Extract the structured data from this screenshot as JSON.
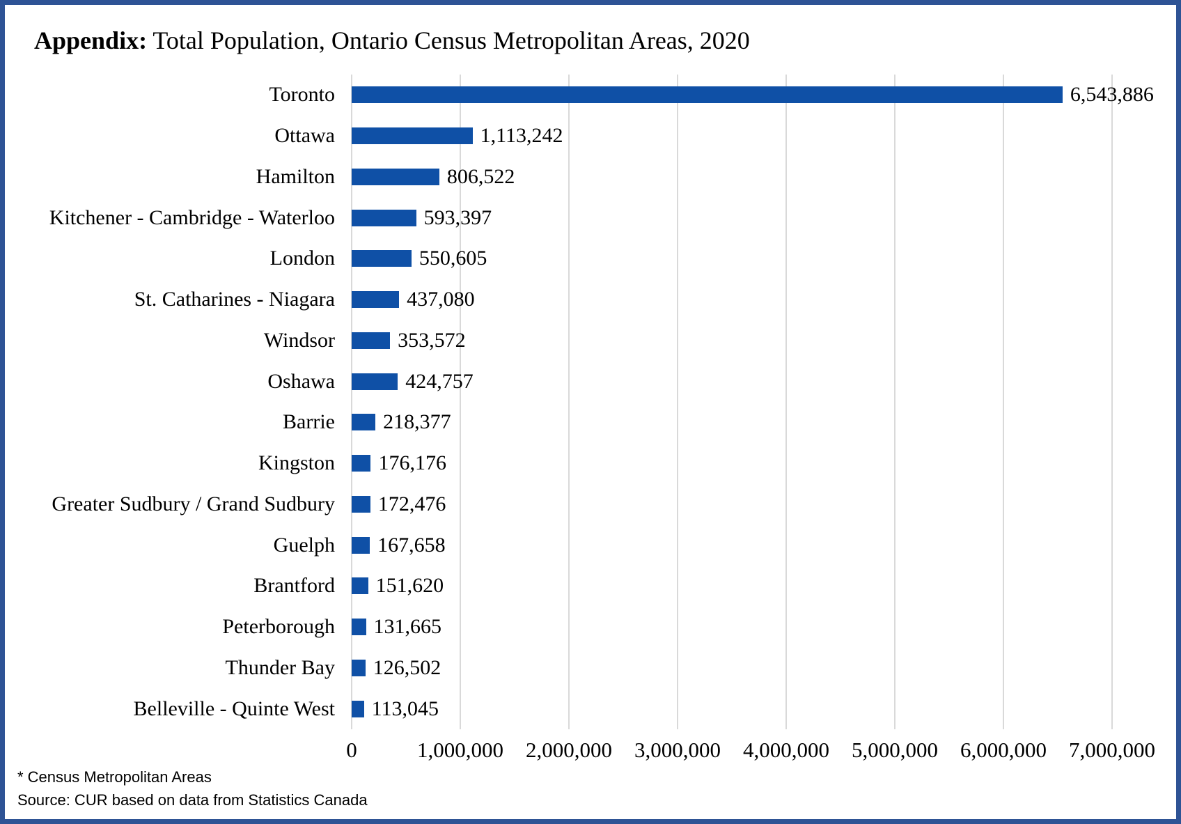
{
  "title": {
    "prefix": "Appendix:",
    "rest": " Total Population, Ontario Census Metropolitan Areas, 2020"
  },
  "chart_data": {
    "type": "bar",
    "orientation": "horizontal",
    "title": "Appendix: Total Population, Ontario Census Metropolitan Areas, 2020",
    "categories": [
      "Toronto",
      "Ottawa",
      "Hamilton",
      "Kitchener - Cambridge - Waterloo",
      "London",
      "St. Catharines - Niagara",
      "Windsor",
      "Oshawa",
      "Barrie",
      "Kingston",
      "Greater Sudbury / Grand Sudbury",
      "Guelph",
      "Brantford",
      "Peterborough",
      "Thunder Bay",
      "Belleville - Quinte West"
    ],
    "values": [
      6543886,
      1113242,
      806522,
      593397,
      550605,
      437080,
      353572,
      424757,
      218377,
      176176,
      172476,
      167658,
      151620,
      131665,
      126502,
      113045
    ],
    "value_labels": [
      "6,543,886",
      "1,113,242",
      "806,522",
      "593,397",
      "550,605",
      "437,080",
      "353,572",
      "424,757",
      "218,377",
      "176,176",
      "172,476",
      "167,658",
      "151,620",
      "131,665",
      "126,502",
      "113,045"
    ],
    "xlabel": "",
    "ylabel": "",
    "xlim": [
      0,
      7000000
    ],
    "xticks": [
      0,
      1000000,
      2000000,
      3000000,
      4000000,
      5000000,
      6000000,
      7000000
    ],
    "xtick_labels": [
      "0",
      "1,000,000",
      "2,000,000",
      "3,000,000",
      "4,000,000",
      "5,000,000",
      "6,000,000",
      "7,000,000"
    ],
    "grid": "vertical",
    "legend": "none",
    "bar_color": "#0F50A6",
    "gridline_color": "#D9D9D9"
  },
  "footnotes": {
    "line1": "* Census Metropolitan Areas",
    "line2": "Source: CUR based on data from Statistics Canada"
  },
  "frame": {
    "border_color": "#2E5395"
  }
}
